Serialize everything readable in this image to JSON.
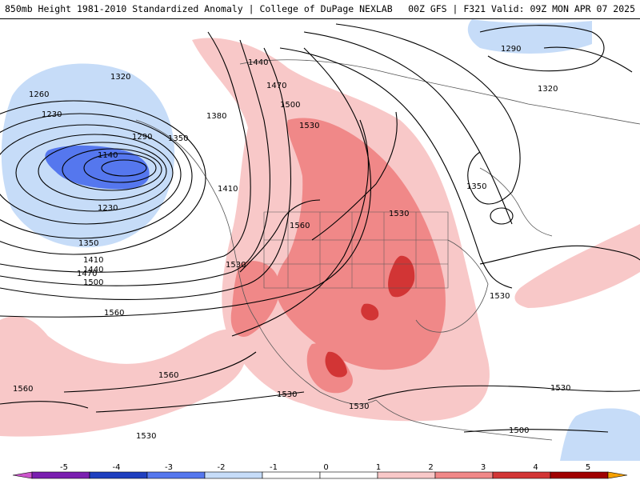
{
  "header": {
    "title_left": "850mb Height 1981-2010 Standardized Anomaly | College of DuPage NEXLAB",
    "title_right": "00Z GFS | F321 Valid: 09Z MON APR 07 2025"
  },
  "colors": {
    "anom_neg5": "#cc55cc",
    "anom_neg4": "#7a1fb0",
    "anom_neg3": "#1f3fbf",
    "anom_neg2": "#5577ee",
    "anom_neg1": "#c6dcf8",
    "anom_pos1": "#f8c8c8",
    "anom_pos2": "#f08888",
    "anom_pos3": "#d23535",
    "anom_pos4": "#a00000",
    "anom_pos5": "#f5a000",
    "contour": "#000000",
    "border": "#555555"
  },
  "contour_labels": [
    "1260",
    "1230",
    "1320",
    "1290",
    "1350",
    "1140",
    "1230",
    "1350",
    "1410",
    "1440",
    "1470",
    "1500",
    "1380",
    "1410",
    "1440",
    "1470",
    "1500",
    "1530",
    "1560",
    "1530",
    "1560",
    "1560",
    "1560",
    "1530",
    "1530",
    "1530",
    "1530",
    "1500",
    "1290",
    "1320",
    "1350",
    "1530",
    "1530"
  ],
  "colorbar": {
    "ticks": [
      "-5",
      "-4",
      "-3",
      "-2",
      "-1",
      "0",
      "1",
      "2",
      "3",
      "4",
      "5"
    ]
  }
}
